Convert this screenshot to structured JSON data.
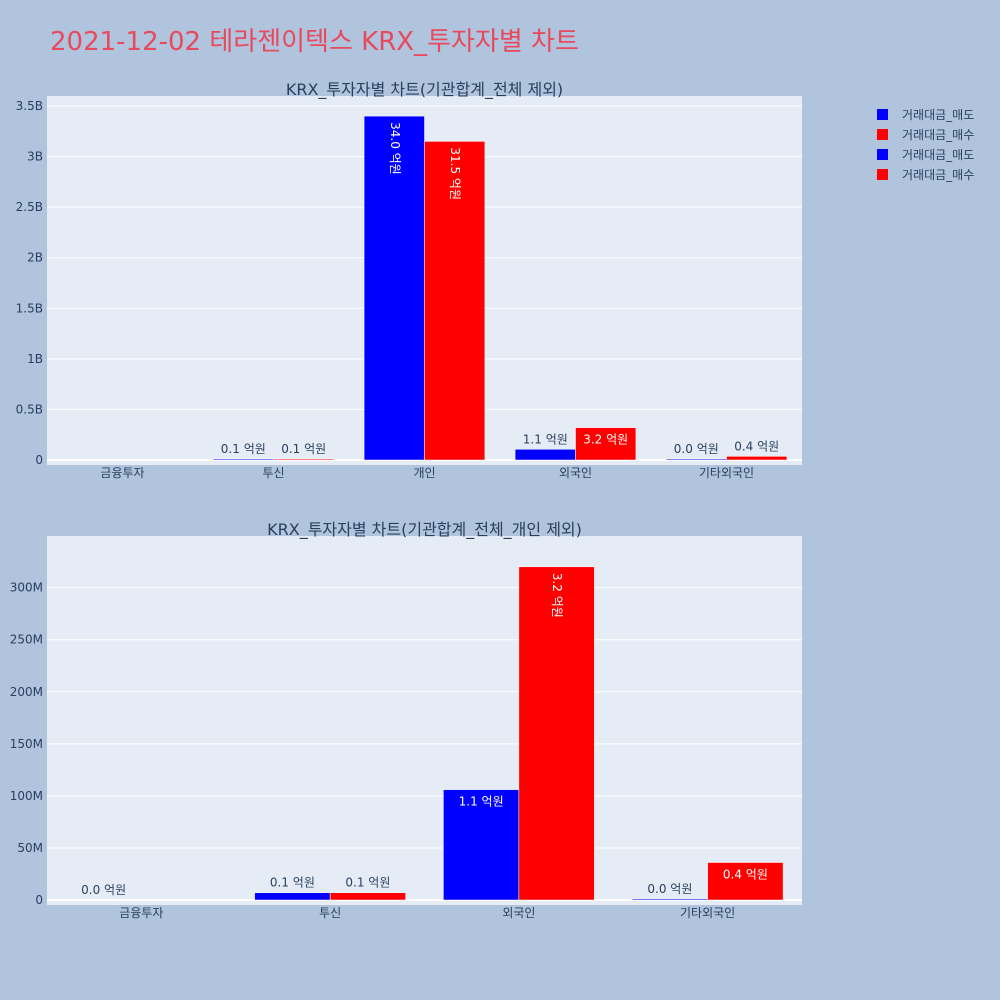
{
  "title": "2021-12-02 테라젠이텍스 KRX_투자자별 차트",
  "colors": {
    "background": "#b0c4de",
    "plot_bg": "#e5ecf6",
    "title": "#e8495c",
    "text": "#2a3f5f",
    "sell": "#0000ff",
    "buy": "#ff0000"
  },
  "legend": {
    "placement": "top-right",
    "entries": [
      {
        "label": "거래대금_매도",
        "color": "#0000ff"
      },
      {
        "label": "거래대금_매수",
        "color": "#ff0000"
      },
      {
        "label": "거래대금_매도",
        "color": "#0000ff"
      },
      {
        "label": "거래대금_매수",
        "color": "#ff0000"
      }
    ]
  },
  "chart_data": [
    {
      "type": "bar",
      "title": "KRX_투자자별 차트(기관합계_전체 제외)",
      "categories": [
        "금융투자",
        "투신",
        "개인",
        "외국인",
        "기타외국인"
      ],
      "series": [
        {
          "name": "거래대금_매도",
          "color": "#0000ff",
          "values": [
            0,
            7000000,
            3400000000,
            106000000,
            1000000
          ],
          "labels": [
            "",
            "0.1 억원",
            "34.0 억원",
            "1.1 억원",
            "0.0 억원"
          ]
        },
        {
          "name": "거래대금_매수",
          "color": "#ff0000",
          "values": [
            0,
            7000000,
            3150000000,
            320000000,
            36000000
          ],
          "labels": [
            "",
            "0.1 억원",
            "31.5 억원",
            "3.2 억원",
            "0.4 억원"
          ]
        }
      ],
      "ylim": [
        0,
        3500000000
      ],
      "yticks": [
        {
          "value": 0,
          "label": "0"
        },
        {
          "value": 500000000,
          "label": "0.5B"
        },
        {
          "value": 1000000000,
          "label": "1B"
        },
        {
          "value": 1500000000,
          "label": "1.5B"
        },
        {
          "value": 2000000000,
          "label": "2B"
        },
        {
          "value": 2500000000,
          "label": "2.5B"
        },
        {
          "value": 3000000000,
          "label": "3B"
        },
        {
          "value": 3500000000,
          "label": "3.5B"
        }
      ],
      "grid": true
    },
    {
      "type": "bar",
      "title": "KRX_투자자별 차트(기관합계_전체_개인 제외)",
      "categories": [
        "금융투자",
        "투신",
        "외국인",
        "기타외국인"
      ],
      "series": [
        {
          "name": "거래대금_매도",
          "color": "#0000ff",
          "values": [
            0,
            7000000,
            106000000,
            1000000
          ],
          "labels": [
            "0.0 억원",
            "0.1 억원",
            "1.1 억원",
            "0.0 억원"
          ]
        },
        {
          "name": "거래대금_매수",
          "color": "#ff0000",
          "values": [
            0,
            7000000,
            320000000,
            36000000
          ],
          "labels": [
            "",
            "0.1 억원",
            "3.2 억원",
            "0.4 억원"
          ]
        }
      ],
      "ylim": [
        0,
        340000000
      ],
      "yticks": [
        {
          "value": 0,
          "label": "0"
        },
        {
          "value": 50000000,
          "label": "50M"
        },
        {
          "value": 100000000,
          "label": "100M"
        },
        {
          "value": 150000000,
          "label": "150M"
        },
        {
          "value": 200000000,
          "label": "200M"
        },
        {
          "value": 250000000,
          "label": "250M"
        },
        {
          "value": 300000000,
          "label": "300M"
        }
      ],
      "grid": true
    }
  ]
}
